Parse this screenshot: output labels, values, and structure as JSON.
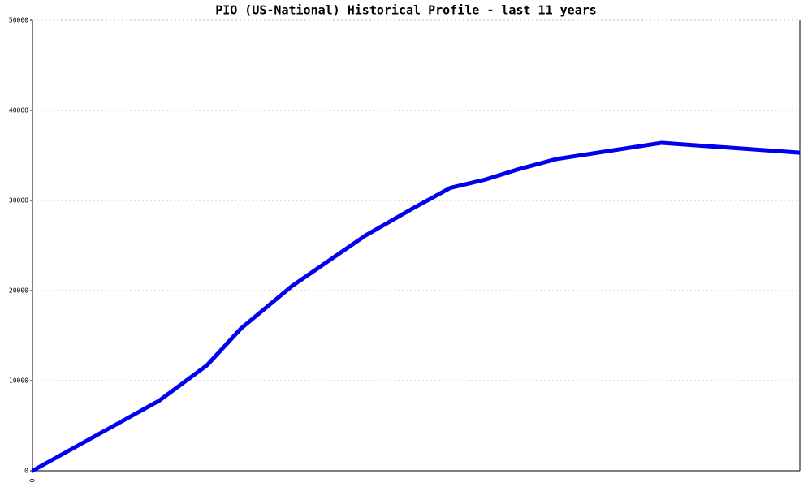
{
  "chart_data": {
    "type": "line",
    "title": "PIO (US-National) Historical Profile - last 11 years",
    "x": [
      0,
      1.82,
      2.5,
      2.99,
      3.72,
      4.77,
      5.47,
      5.99,
      6.48,
      6.98,
      7.51,
      9.02,
      11
    ],
    "series": [
      {
        "color": "#0000ee",
        "values": [
          0,
          7800,
          11700,
          15800,
          20500,
          26100,
          29200,
          31400,
          32300,
          33500,
          34600,
          36400,
          35300
        ]
      }
    ],
    "xlim": [
      0,
      11
    ],
    "xticks": [
      0
    ],
    "ylim": [
      0,
      50000
    ],
    "yticks": [
      0,
      10000,
      20000,
      30000,
      40000,
      50000
    ],
    "grid": true
  }
}
